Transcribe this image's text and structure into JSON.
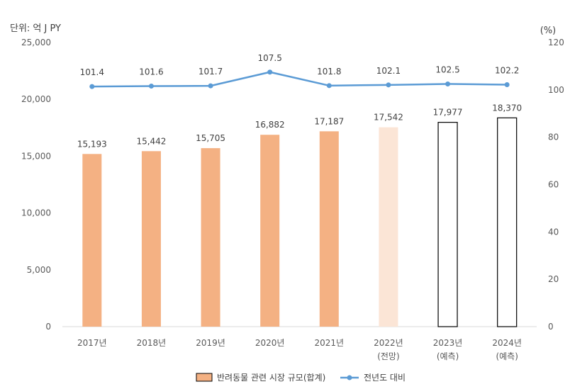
{
  "chart_data": {
    "type": "bar+line",
    "left_unit_label": "단위: 억 J PY",
    "right_unit_label": "(%)",
    "categories": [
      "2017년",
      "2018년",
      "2019년",
      "2020년",
      "2021년",
      "2022년",
      "2023년",
      "2024년"
    ],
    "category_notes": [
      "",
      "",
      "",
      "",
      "",
      "(전망)",
      "(예측)",
      "(예측)"
    ],
    "left_axis": {
      "min": 0,
      "max": 25000,
      "ticks": [
        "0",
        "5,000",
        "10,000",
        "15,000",
        "20,000",
        "25,000"
      ]
    },
    "right_axis": {
      "min": 0,
      "max": 120,
      "ticks": [
        "0",
        "20",
        "40",
        "60",
        "80",
        "100",
        "120"
      ]
    },
    "series": [
      {
        "name": "반려동물 관련 시장 규모(합계)",
        "type": "bar",
        "axis": "left",
        "values": [
          15193,
          15442,
          15705,
          16882,
          17187,
          17542,
          17977,
          18370
        ],
        "labels": [
          "15,193",
          "15,442",
          "15,705",
          "16,882",
          "17,187",
          "17,542",
          "17,977",
          "18,370"
        ],
        "bar_styles": [
          "actual",
          "actual",
          "actual",
          "actual",
          "actual",
          "forecast",
          "prediction",
          "prediction"
        ]
      },
      {
        "name": "전년도 대비",
        "type": "line",
        "axis": "right",
        "values": [
          101.4,
          101.6,
          101.7,
          107.5,
          101.8,
          102.1,
          102.5,
          102.2
        ],
        "labels": [
          "101.4",
          "101.6",
          "101.7",
          "107.5",
          "101.8",
          "102.1",
          "102.5",
          "102.2"
        ]
      }
    ],
    "colors": {
      "bar_actual": "#f4b183",
      "bar_forecast": "#fbe5d6",
      "bar_prediction": "#ffffff",
      "bar_stroke": "#000000",
      "line": "#5b9bd5",
      "axis": "#d9d9d9"
    },
    "legend_position": "bottom"
  }
}
